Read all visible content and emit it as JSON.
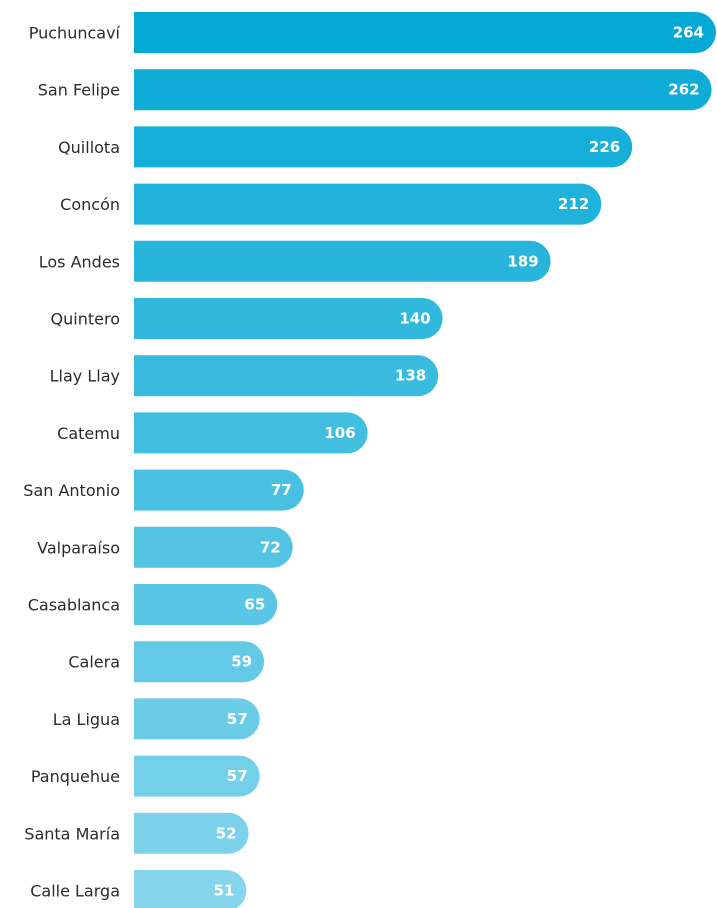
{
  "chart_data": {
    "type": "bar",
    "orientation": "horizontal",
    "title": "",
    "xlabel": "",
    "ylabel": "",
    "grid": false,
    "categories": [
      "Puchuncaví",
      "San Felipe",
      "Quillota",
      "Concón",
      "Los Andes",
      "Quintero",
      "Llay Llay",
      "Catemu",
      "San Antonio",
      "Valparaíso",
      "Casablanca",
      "Calera",
      "La Ligua",
      "Panquehue",
      "Santa María",
      "Calle Larga"
    ],
    "values": [
      264,
      262,
      226,
      212,
      189,
      140,
      138,
      106,
      77,
      72,
      65,
      59,
      57,
      57,
      52,
      51
    ],
    "xlim": [
      0,
      264
    ],
    "colors": {
      "max": "#05a9d6",
      "min": "#85d5ec"
    }
  }
}
